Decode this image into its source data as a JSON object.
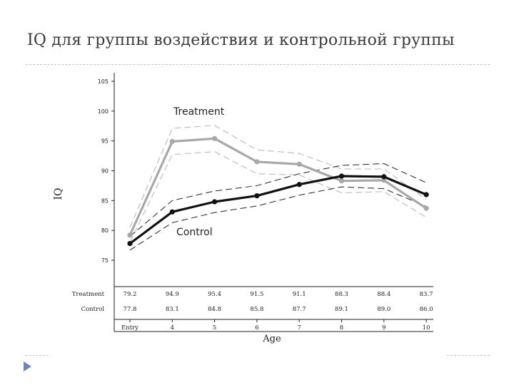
{
  "slide": {
    "title": "IQ для группы воздействия и контрольной группы"
  },
  "chart_data": {
    "type": "line",
    "x": [
      "Entry",
      "4",
      "5",
      "6",
      "7",
      "8",
      "9",
      "10"
    ],
    "xlabel": "Age",
    "ylabel": "IQ",
    "ylim": [
      75,
      105
    ],
    "yticks": [
      75,
      80,
      85,
      90,
      95,
      100,
      105
    ],
    "grid": false,
    "series": [
      {
        "name": "Treatment",
        "values": [
          79.2,
          94.9,
          95.4,
          91.5,
          91.1,
          88.3,
          88.4,
          83.7
        ],
        "ci_upper": [
          80.5,
          97.1,
          97.6,
          93.5,
          92.9,
          90.3,
          90.3,
          85.2
        ],
        "ci_lower": [
          78.0,
          92.7,
          93.2,
          89.5,
          89.3,
          86.3,
          86.5,
          82.2
        ],
        "color": "#a8a8a8"
      },
      {
        "name": "Control",
        "values": [
          77.8,
          83.1,
          84.8,
          85.8,
          87.7,
          89.1,
          89.0,
          86.0
        ],
        "ci_upper": [
          79.0,
          85.0,
          86.6,
          87.5,
          89.5,
          90.9,
          91.2,
          88.0
        ],
        "ci_lower": [
          76.7,
          81.3,
          83.0,
          84.1,
          85.9,
          87.3,
          87.0,
          84.0
        ],
        "color": "#111111"
      }
    ],
    "table": {
      "rows": [
        {
          "label": "Treatment",
          "values": [
            "79.2",
            "94.9",
            "95.4",
            "91.5",
            "91.1",
            "88.3",
            "88.4",
            "83.7"
          ]
        },
        {
          "label": "Control",
          "values": [
            "77.8",
            "83.1",
            "84.8",
            "85.8",
            "87.7",
            "89.1",
            "89.0",
            "86.0"
          ]
        }
      ]
    }
  }
}
